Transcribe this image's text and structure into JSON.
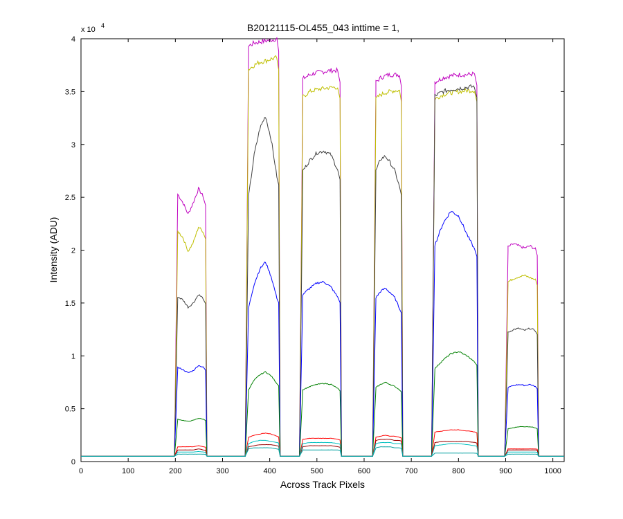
{
  "chart_data": {
    "type": "line",
    "title": "B20121115-OL455_043 inttime = 1,",
    "xlabel": "Across Track Pixels",
    "ylabel": "Intensity (ADU)",
    "xlim": [
      0,
      1024
    ],
    "ylim": [
      0,
      40000
    ],
    "y_exponent_label": "x 10",
    "y_exponent_power": "4",
    "x_ticks": [
      0,
      100,
      200,
      300,
      400,
      500,
      600,
      700,
      800,
      900,
      1000
    ],
    "x_tick_labels": [
      "0",
      "100",
      "200",
      "300",
      "400",
      "500",
      "600",
      "700",
      "800",
      "900",
      "1000"
    ],
    "y_ticks": [
      0,
      5000,
      10000,
      15000,
      20000,
      25000,
      30000,
      35000,
      40000
    ],
    "y_tick_labels": [
      "0",
      "0.5",
      "1",
      "1.5",
      "2",
      "2.5",
      "3",
      "3.5",
      "4"
    ],
    "grid": false,
    "legend": "none",
    "baseline": 500,
    "colors": {
      "magenta": "#bf00bf",
      "yellow": "#bfbf00",
      "black": "#404040",
      "blue": "#0000ff",
      "green": "#008000",
      "red": "#ff0000",
      "darkred": "#990000",
      "cyan": "#00bfbf",
      "teal": "#00a0a0"
    },
    "segments": [
      {
        "start": 200,
        "end": 265
      },
      {
        "start": 350,
        "end": 420
      },
      {
        "start": 465,
        "end": 550
      },
      {
        "start": 620,
        "end": 680
      },
      {
        "start": 745,
        "end": 840
      },
      {
        "start": 900,
        "end": 968
      }
    ],
    "series": [
      {
        "color": "#bf00bf",
        "peaks": [
          {
            "x": 200,
            "end": 265,
            "plateau": [
              25300,
              24500,
              23400,
              24500,
              25800,
              25000
            ]
          },
          {
            "x": 350,
            "end": 420,
            "plateau": [
              39300,
              39600,
              39700,
              39800,
              39900,
              40000
            ]
          },
          {
            "x": 465,
            "end": 550,
            "plateau": [
              36200,
              36600,
              36800,
              36900,
              37000,
              37000
            ]
          },
          {
            "x": 620,
            "end": 680,
            "plateau": [
              35900,
              36300,
              36500,
              36600,
              36600,
              36600
            ]
          },
          {
            "x": 745,
            "end": 840,
            "plateau": [
              35900,
              36300,
              36500,
              36600,
              36600,
              36700
            ]
          },
          {
            "x": 900,
            "end": 968,
            "plateau": [
              20300,
              20600,
              20400,
              20200,
              20400,
              20100
            ]
          }
        ]
      },
      {
        "color": "#bfbf00",
        "peaks": [
          {
            "x": 200,
            "end": 265,
            "plateau": [
              21800,
              21200,
              19900,
              20700,
              22200,
              21700
            ]
          },
          {
            "x": 350,
            "end": 420,
            "plateau": [
              37100,
              37500,
              37800,
              37900,
              38100,
              38200
            ]
          },
          {
            "x": 465,
            "end": 550,
            "plateau": [
              34500,
              35000,
              35200,
              35300,
              35400,
              35400
            ]
          },
          {
            "x": 620,
            "end": 680,
            "plateau": [
              34300,
              34700,
              34900,
              35000,
              35100,
              35100
            ]
          },
          {
            "x": 745,
            "end": 840,
            "plateau": [
              34300,
              34700,
              34900,
              35000,
              35100,
              35100
            ]
          },
          {
            "x": 900,
            "end": 968,
            "plateau": [
              17000,
              17300,
              17500,
              17600,
              17400,
              17200
            ]
          }
        ]
      },
      {
        "color": "#404040",
        "peaks": [
          {
            "x": 200,
            "end": 265,
            "plateau": [
              15600,
              15300,
              14600,
              15000,
              15800,
              15400
            ]
          },
          {
            "x": 350,
            "end": 420,
            "plateau": [
              25000,
              29000,
              31500,
              32700,
              30500,
              27000
            ]
          },
          {
            "x": 465,
            "end": 550,
            "plateau": [
              27500,
              28500,
              29200,
              29400,
              29000,
              27500
            ]
          },
          {
            "x": 620,
            "end": 680,
            "plateau": [
              27500,
              28600,
              28900,
              28300,
              27500,
              26000
            ]
          },
          {
            "x": 745,
            "end": 840,
            "plateau": [
              34600,
              35000,
              35200,
              35300,
              35400,
              35500
            ]
          },
          {
            "x": 900,
            "end": 968,
            "plateau": [
              12200,
              12500,
              12600,
              12400,
              12600,
              12400
            ]
          }
        ]
      },
      {
        "color": "#0000ff",
        "peaks": [
          {
            "x": 200,
            "end": 265,
            "plateau": [
              8900,
              8700,
              8400,
              8600,
              9100,
              8900
            ]
          },
          {
            "x": 350,
            "end": 420,
            "plateau": [
              14500,
              16800,
              18200,
              18900,
              17500,
              15500
            ]
          },
          {
            "x": 465,
            "end": 550,
            "plateau": [
              15800,
              16400,
              16900,
              17000,
              16500,
              15500
            ]
          },
          {
            "x": 620,
            "end": 680,
            "plateau": [
              15500,
              16100,
              16400,
              16000,
              15500,
              14500
            ]
          },
          {
            "x": 745,
            "end": 840,
            "plateau": [
              20500,
              22500,
              23700,
              23200,
              21500,
              20000
            ]
          },
          {
            "x": 900,
            "end": 968,
            "plateau": [
              7000,
              7200,
              7300,
              7200,
              7300,
              7100
            ]
          }
        ]
      },
      {
        "color": "#008000",
        "peaks": [
          {
            "x": 200,
            "end": 265,
            "plateau": [
              4000,
              3900,
              3800,
              3900,
              4100,
              4000
            ]
          },
          {
            "x": 350,
            "end": 420,
            "plateau": [
              6800,
              7700,
              8200,
              8500,
              8100,
              7400
            ]
          },
          {
            "x": 465,
            "end": 550,
            "plateau": [
              6800,
              7100,
              7300,
              7400,
              7300,
              6900
            ]
          },
          {
            "x": 620,
            "end": 680,
            "plateau": [
              7000,
              7300,
              7500,
              7300,
              7100,
              6800
            ]
          },
          {
            "x": 745,
            "end": 840,
            "plateau": [
              8800,
              9600,
              10200,
              10400,
              10000,
              9400
            ]
          },
          {
            "x": 900,
            "end": 968,
            "plateau": [
              3100,
              3200,
              3300,
              3300,
              3300,
              3200
            ]
          }
        ]
      },
      {
        "color": "#ff0000",
        "peaks": [
          {
            "x": 200,
            "end": 265,
            "plateau": [
              1400,
              1400,
              1400,
              1400,
              1500,
              1400
            ]
          },
          {
            "x": 350,
            "end": 420,
            "plateau": [
              2300,
              2500,
              2600,
              2700,
              2600,
              2400
            ]
          },
          {
            "x": 465,
            "end": 550,
            "plateau": [
              2100,
              2200,
              2200,
              2200,
              2200,
              2100
            ]
          },
          {
            "x": 620,
            "end": 680,
            "plateau": [
              2300,
              2400,
              2500,
              2400,
              2400,
              2300
            ]
          },
          {
            "x": 745,
            "end": 840,
            "plateau": [
              2800,
              2900,
              3000,
              3000,
              2900,
              2800
            ]
          },
          {
            "x": 900,
            "end": 968,
            "plateau": [
              1200,
              1200,
              1200,
              1200,
              1200,
              1200
            ]
          }
        ]
      },
      {
        "color": "#990000",
        "peaks": [
          {
            "x": 200,
            "end": 265,
            "plateau": [
              1100,
              1100,
              1100,
              1100,
              1200,
              1100
            ]
          },
          {
            "x": 350,
            "end": 420,
            "plateau": [
              1400,
              1500,
              1600,
              1600,
              1600,
              1500
            ]
          },
          {
            "x": 465,
            "end": 550,
            "plateau": [
              1400,
              1500,
              1500,
              1500,
              1500,
              1400
            ]
          },
          {
            "x": 620,
            "end": 680,
            "plateau": [
              2000,
              2100,
              2100,
              2100,
              2000,
              2000
            ]
          },
          {
            "x": 745,
            "end": 840,
            "plateau": [
              1800,
              1900,
              1900,
              1900,
              1900,
              1800
            ]
          },
          {
            "x": 900,
            "end": 968,
            "plateau": [
              1100,
              1100,
              1100,
              1100,
              1100,
              1100
            ]
          }
        ]
      },
      {
        "color": "#00bfbf",
        "peaks": [
          {
            "x": 200,
            "end": 265,
            "plateau": [
              900,
              900,
              900,
              900,
              950,
              900
            ]
          },
          {
            "x": 350,
            "end": 420,
            "plateau": [
              1700,
              1900,
              2000,
              2000,
              1900,
              1800
            ]
          },
          {
            "x": 465,
            "end": 550,
            "plateau": [
              1700,
              1800,
              1800,
              1800,
              1800,
              1700
            ]
          },
          {
            "x": 620,
            "end": 680,
            "plateau": [
              1700,
              1800,
              1800,
              1800,
              1700,
              1700
            ]
          },
          {
            "x": 745,
            "end": 840,
            "plateau": [
              1500,
              1600,
              1700,
              1700,
              1600,
              1500
            ]
          },
          {
            "x": 900,
            "end": 968,
            "plateau": [
              900,
              900,
              900,
              900,
              900,
              900
            ]
          }
        ]
      },
      {
        "color": "#00a0a0",
        "peaks": [
          {
            "x": 200,
            "end": 265,
            "plateau": [
              700,
              700,
              700,
              700,
              700,
              700
            ]
          },
          {
            "x": 350,
            "end": 420,
            "plateau": [
              1200,
              1300,
              1300,
              1300,
              1300,
              1200
            ]
          },
          {
            "x": 465,
            "end": 550,
            "plateau": [
              1100,
              1100,
              1100,
              1100,
              1100,
              1100
            ]
          },
          {
            "x": 620,
            "end": 680,
            "plateau": [
              1300,
              1400,
              1400,
              1400,
              1300,
              1300
            ]
          },
          {
            "x": 745,
            "end": 840,
            "plateau": [
              800,
              800,
              800,
              800,
              800,
              800
            ]
          },
          {
            "x": 900,
            "end": 968,
            "plateau": [
              700,
              700,
              700,
              700,
              700,
              700
            ]
          }
        ]
      }
    ]
  }
}
